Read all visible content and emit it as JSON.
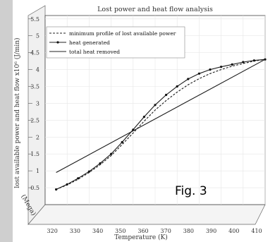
{
  "chart_data": {
    "type": "line",
    "title": "Lost power and heat flow analysis",
    "xlabel": "Temperature (K)",
    "ylabel": "lost available power and heat flow x10⁶ (J/min)",
    "zlabel": "(Mega)",
    "x_ticks": [
      "320",
      "330",
      "340",
      "350",
      "360",
      "370",
      "380",
      "390",
      "400",
      "410"
    ],
    "y_ticks": [
      "0.5",
      "1",
      "1.5",
      "2",
      "2.5",
      "3",
      "3.5",
      "4",
      "4.5",
      "5",
      "5.5"
    ],
    "xlim": [
      310,
      410
    ],
    "ylim": [
      0,
      5.6
    ],
    "legend_position": "top-left",
    "annotation": "Fig. 3",
    "series": [
      {
        "name": "minimum profile of lost available power",
        "style": "dashed",
        "x": [
          315,
          320,
          325,
          330,
          335,
          340,
          345,
          350,
          355,
          360,
          365,
          370,
          375,
          380,
          385,
          390,
          395,
          400,
          405,
          410
        ],
        "y": [
          0.45,
          0.58,
          0.75,
          0.95,
          1.18,
          1.45,
          1.78,
          2.12,
          2.47,
          2.8,
          3.08,
          3.33,
          3.55,
          3.73,
          3.88,
          4.0,
          4.1,
          4.18,
          4.25,
          4.3
        ]
      },
      {
        "name": "heat generated",
        "style": "solid-marker",
        "x": [
          315,
          320,
          325,
          330,
          335,
          340,
          345,
          350,
          355,
          360,
          365,
          370,
          375,
          380,
          385,
          390,
          395,
          400,
          405,
          410
        ],
        "y": [
          0.45,
          0.6,
          0.78,
          0.98,
          1.22,
          1.5,
          1.85,
          2.22,
          2.6,
          2.95,
          3.25,
          3.5,
          3.72,
          3.88,
          4.0,
          4.08,
          4.15,
          4.22,
          4.27,
          4.3
        ]
      },
      {
        "name": "total heat removed",
        "style": "solid",
        "x": [
          315,
          410
        ],
        "y": [
          0.95,
          4.3
        ]
      }
    ]
  }
}
